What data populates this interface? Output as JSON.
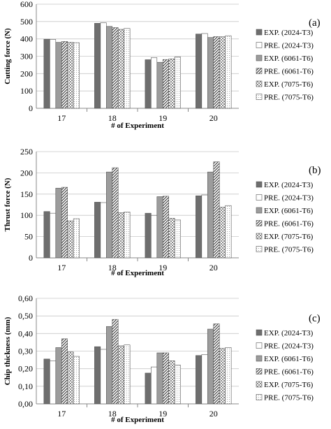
{
  "legend": [
    "EXP.  (2024-T3)",
    "PRE.  (2024-T3)",
    "EXP.  (6061-T6)",
    "PRE.  (6061-T6)",
    "EXP.  (7075-T6)",
    "PRE.  (7075-T6)"
  ],
  "chart_data": [
    {
      "type": "bar",
      "panel_label": "(a)",
      "title": "",
      "xlabel": "# of Experiment",
      "ylabel": "Cutting force (N)",
      "categories": [
        "17",
        "18",
        "19",
        "20"
      ],
      "ylim": [
        0,
        600
      ],
      "yticks": [
        "0",
        "100",
        "200",
        "300",
        "400",
        "500",
        "600"
      ],
      "grid": "horizontal",
      "legend_position": "right",
      "series": [
        {
          "name": "EXP.  (2024-T3)",
          "values": [
            398,
            490,
            280,
            428
          ]
        },
        {
          "name": "PRE.  (2024-T3)",
          "values": [
            397,
            493,
            292,
            431
          ]
        },
        {
          "name": "EXP.  (6061-T6)",
          "values": [
            380,
            472,
            265,
            408
          ]
        },
        {
          "name": "PRE.  (6061-T6)",
          "values": [
            385,
            465,
            281,
            413
          ]
        },
        {
          "name": "EXP.  (7075-T6)",
          "values": [
            380,
            455,
            285,
            412
          ]
        },
        {
          "name": "PRE.  (7075-T6)",
          "values": [
            378,
            460,
            296,
            418
          ]
        }
      ]
    },
    {
      "type": "bar",
      "panel_label": "(b)",
      "title": "",
      "xlabel": "# of Experiment",
      "ylabel": "Thrust force (N)",
      "categories": [
        "17",
        "18",
        "19",
        "20"
      ],
      "ylim": [
        0,
        250
      ],
      "yticks": [
        "0",
        "50",
        "100",
        "150",
        "200",
        "250"
      ],
      "grid": "horizontal",
      "legend_position": "right",
      "series": [
        {
          "name": "EXP.  (2024-T3)",
          "values": [
            109,
            131,
            105,
            146
          ]
        },
        {
          "name": "PRE.  (2024-T3)",
          "values": [
            105,
            130,
            100,
            148
          ]
        },
        {
          "name": "EXP.  (6061-T6)",
          "values": [
            164,
            202,
            144,
            202
          ]
        },
        {
          "name": "PRE.  (6061-T6)",
          "values": [
            166,
            212,
            145,
            226
          ]
        },
        {
          "name": "EXP.  (7075-T6)",
          "values": [
            87,
            106,
            93,
            119
          ]
        },
        {
          "name": "PRE.  (7075-T6)",
          "values": [
            92,
            108,
            89,
            123
          ]
        }
      ]
    },
    {
      "type": "bar",
      "panel_label": "(c)",
      "title": "",
      "xlabel": "# of Experiment",
      "ylabel": "Chip thickness (mm)",
      "categories": [
        "17",
        "18",
        "19",
        "20"
      ],
      "ylim": [
        0,
        0.6
      ],
      "yticks": [
        "0,00",
        "0,10",
        "0,20",
        "0,30",
        "0,40",
        "0,50",
        "0,60"
      ],
      "grid": "horizontal",
      "legend_position": "right",
      "series": [
        {
          "name": "EXP. (2024-T3)",
          "values": [
            0.255,
            0.325,
            0.175,
            0.275
          ]
        },
        {
          "name": "PRE.  (2024-T3)",
          "values": [
            0.245,
            0.31,
            0.21,
            0.28
          ]
        },
        {
          "name": "EXP.  (6061-T6)",
          "values": [
            0.32,
            0.44,
            0.29,
            0.425
          ]
        },
        {
          "name": "PRE.  (6061-T6)",
          "values": [
            0.37,
            0.48,
            0.29,
            0.455
          ]
        },
        {
          "name": "EXP.  (7075-T6)",
          "values": [
            0.295,
            0.33,
            0.245,
            0.315
          ]
        },
        {
          "name": "PRE.  (7075-T6)",
          "values": [
            0.27,
            0.335,
            0.22,
            0.32
          ]
        }
      ]
    }
  ]
}
